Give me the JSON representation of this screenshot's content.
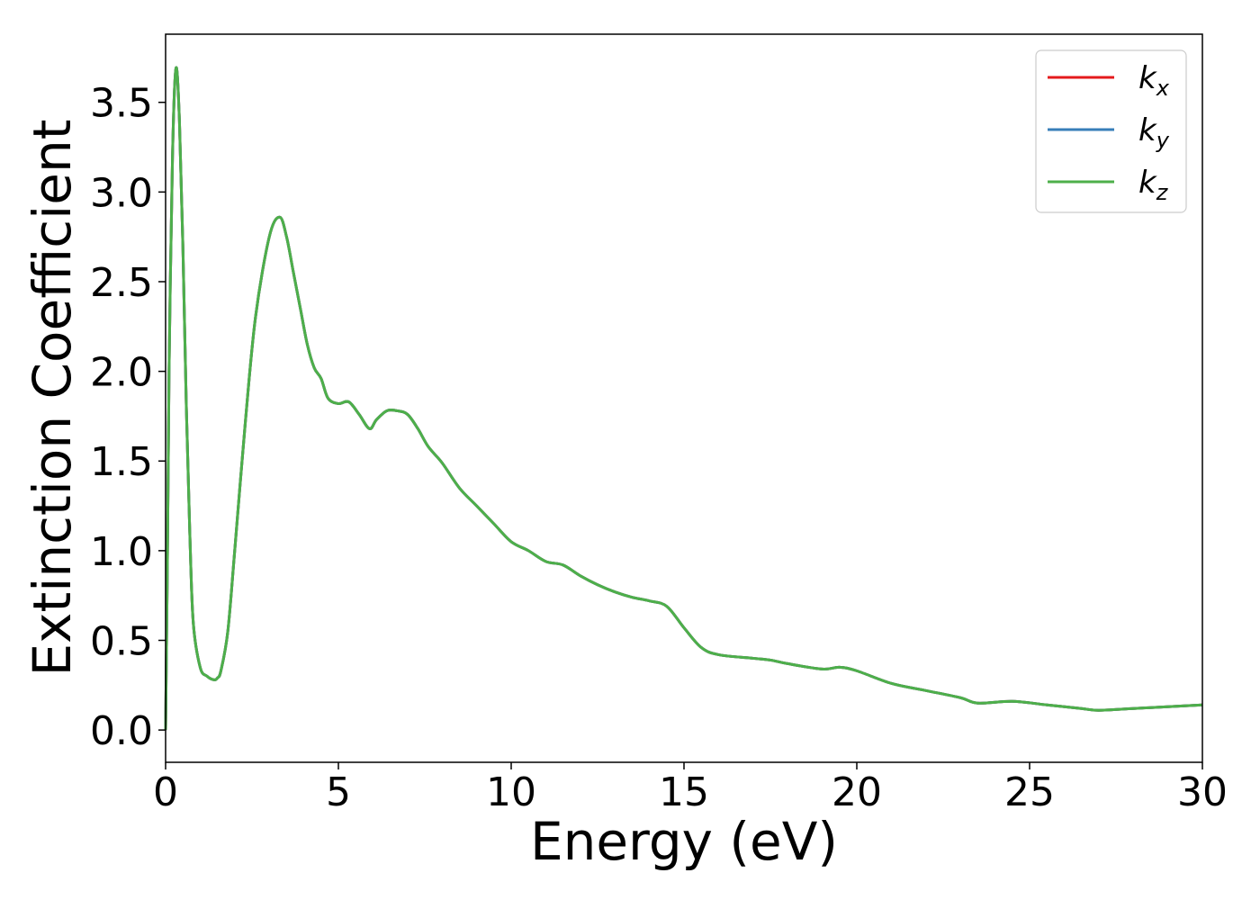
{
  "chart_data": {
    "type": "line",
    "title": "",
    "xlabel": "Energy (eV)",
    "ylabel": "Extinction Coefficient",
    "xlim": [
      0,
      30
    ],
    "ylim": [
      -0.18,
      3.88
    ],
    "xticks": [
      0,
      5,
      10,
      15,
      20,
      25,
      30
    ],
    "xtick_labels": [
      "0",
      "5",
      "10",
      "15",
      "20",
      "25",
      "30"
    ],
    "yticks": [
      0.0,
      0.5,
      1.0,
      1.5,
      2.0,
      2.5,
      3.0,
      3.5
    ],
    "ytick_labels": [
      "0.0",
      "0.5",
      "1.0",
      "1.5",
      "2.0",
      "2.5",
      "3.0",
      "3.5"
    ],
    "grid": false,
    "legend_position": "top-right",
    "x": [
      0,
      0.05,
      0.1,
      0.2,
      0.3,
      0.4,
      0.5,
      0.6,
      0.7,
      0.8,
      1.0,
      1.2,
      1.4,
      1.5,
      1.6,
      1.8,
      2.0,
      2.3,
      2.6,
      3.0,
      3.3,
      3.5,
      3.7,
      3.9,
      4.1,
      4.3,
      4.5,
      4.7,
      5.0,
      5.3,
      5.6,
      5.9,
      6.1,
      6.4,
      6.7,
      7.0,
      7.3,
      7.6,
      8.0,
      8.5,
      9.0,
      9.5,
      10.0,
      10.5,
      11.0,
      11.5,
      12.0,
      12.5,
      13.0,
      13.5,
      14.0,
      14.5,
      15.0,
      15.5,
      16.0,
      17.0,
      17.5,
      18.0,
      19.0,
      19.5,
      20.0,
      21.0,
      22.0,
      23.0,
      23.5,
      24.5,
      25.5,
      26.5,
      27.0,
      28.0,
      29.0,
      30.0
    ],
    "series": [
      {
        "name": "k",
        "sub": "x",
        "color": "#e41a1c",
        "values": [
          0.0,
          0.9,
          2.0,
          3.2,
          3.69,
          3.4,
          2.7,
          1.8,
          1.1,
          0.6,
          0.35,
          0.3,
          0.28,
          0.29,
          0.33,
          0.55,
          1.0,
          1.7,
          2.3,
          2.75,
          2.86,
          2.75,
          2.55,
          2.35,
          2.15,
          2.02,
          1.96,
          1.85,
          1.82,
          1.83,
          1.76,
          1.68,
          1.73,
          1.78,
          1.78,
          1.76,
          1.68,
          1.58,
          1.49,
          1.35,
          1.25,
          1.15,
          1.05,
          1.0,
          0.94,
          0.92,
          0.86,
          0.81,
          0.77,
          0.74,
          0.72,
          0.69,
          0.57,
          0.46,
          0.42,
          0.4,
          0.39,
          0.37,
          0.34,
          0.35,
          0.33,
          0.26,
          0.22,
          0.18,
          0.15,
          0.16,
          0.14,
          0.12,
          0.11,
          0.12,
          0.13,
          0.14
        ]
      },
      {
        "name": "k",
        "sub": "y",
        "color": "#377eb8",
        "values": [
          0.0,
          0.9,
          2.0,
          3.2,
          3.69,
          3.4,
          2.7,
          1.8,
          1.1,
          0.6,
          0.35,
          0.3,
          0.28,
          0.29,
          0.33,
          0.55,
          1.0,
          1.7,
          2.3,
          2.75,
          2.86,
          2.75,
          2.55,
          2.35,
          2.15,
          2.02,
          1.96,
          1.85,
          1.82,
          1.83,
          1.76,
          1.68,
          1.73,
          1.78,
          1.78,
          1.76,
          1.68,
          1.58,
          1.49,
          1.35,
          1.25,
          1.15,
          1.05,
          1.0,
          0.94,
          0.92,
          0.86,
          0.81,
          0.77,
          0.74,
          0.72,
          0.69,
          0.57,
          0.46,
          0.42,
          0.4,
          0.39,
          0.37,
          0.34,
          0.35,
          0.33,
          0.26,
          0.22,
          0.18,
          0.15,
          0.16,
          0.14,
          0.12,
          0.11,
          0.12,
          0.13,
          0.14
        ]
      },
      {
        "name": "k",
        "sub": "z",
        "color": "#4daf4a",
        "values": [
          0.0,
          0.9,
          2.0,
          3.2,
          3.69,
          3.4,
          2.7,
          1.8,
          1.1,
          0.6,
          0.35,
          0.3,
          0.28,
          0.29,
          0.33,
          0.55,
          1.0,
          1.7,
          2.3,
          2.75,
          2.86,
          2.75,
          2.55,
          2.35,
          2.15,
          2.02,
          1.96,
          1.85,
          1.82,
          1.83,
          1.76,
          1.68,
          1.73,
          1.78,
          1.78,
          1.76,
          1.68,
          1.58,
          1.49,
          1.35,
          1.25,
          1.15,
          1.05,
          1.0,
          0.94,
          0.92,
          0.86,
          0.81,
          0.77,
          0.74,
          0.72,
          0.69,
          0.57,
          0.46,
          0.42,
          0.4,
          0.39,
          0.37,
          0.34,
          0.35,
          0.33,
          0.26,
          0.22,
          0.18,
          0.15,
          0.16,
          0.14,
          0.12,
          0.11,
          0.12,
          0.13,
          0.14
        ]
      }
    ]
  }
}
